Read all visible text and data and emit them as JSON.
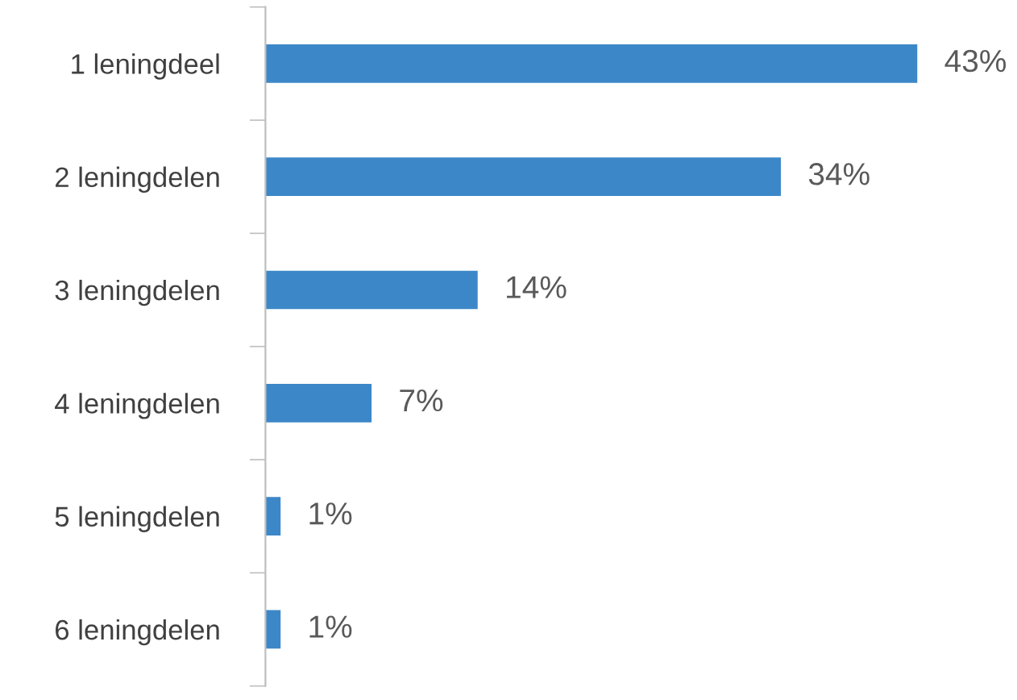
{
  "chart_data": {
    "type": "bar",
    "orientation": "horizontal",
    "categories": [
      "1 leningdeel",
      "2 leningdelen",
      "3 leningdelen",
      "4 leningdelen",
      "5 leningdelen",
      "6 leningdelen"
    ],
    "values": [
      43,
      34,
      14,
      7,
      1,
      1
    ],
    "value_labels": [
      "43%",
      "34%",
      "14%",
      "7%",
      "1%",
      "1%"
    ],
    "color": "#3c87c8",
    "grid": false,
    "legend": false,
    "tick_labels": "y"
  }
}
